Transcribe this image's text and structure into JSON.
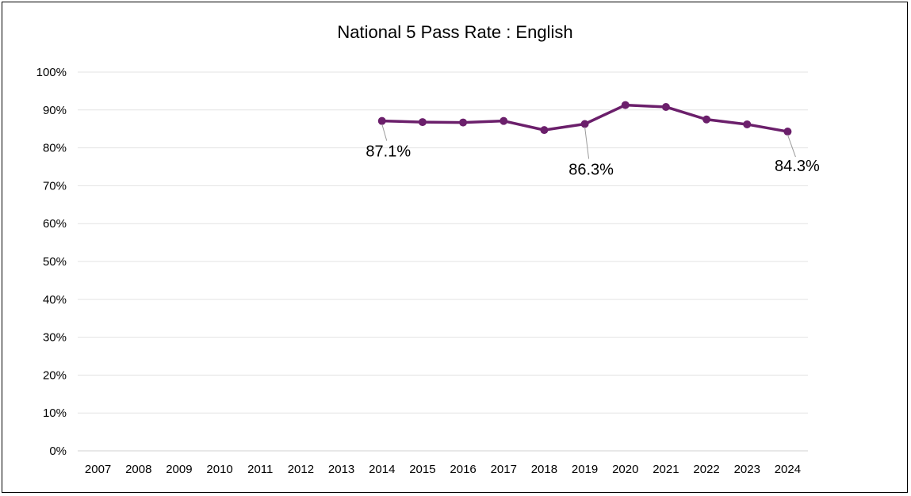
{
  "chart_data": {
    "type": "line",
    "title": "National 5 Pass Rate : English",
    "x": [
      "2007",
      "2008",
      "2009",
      "2010",
      "2011",
      "2012",
      "2013",
      "2014",
      "2015",
      "2016",
      "2017",
      "2018",
      "2019",
      "2020",
      "2021",
      "2022",
      "2023",
      "2024"
    ],
    "y_tick_labels": [
      "100%",
      "90%",
      "80%",
      "70%",
      "60%",
      "50%",
      "40%",
      "30%",
      "20%",
      "10%",
      "0%"
    ],
    "ylim": [
      0,
      100
    ],
    "grid": true,
    "legend": "none",
    "series": [
      {
        "color": "#6b1f6b",
        "values": [
          null,
          null,
          null,
          null,
          null,
          null,
          null,
          87.1,
          86.8,
          86.7,
          87.1,
          84.7,
          86.3,
          91.3,
          90.8,
          87.5,
          86.2,
          84.3
        ]
      }
    ],
    "data_labels": [
      {
        "x": "2014",
        "text": "87.1%"
      },
      {
        "x": "2019",
        "text": "86.3%"
      },
      {
        "x": "2024",
        "text": "84.3%"
      }
    ]
  }
}
